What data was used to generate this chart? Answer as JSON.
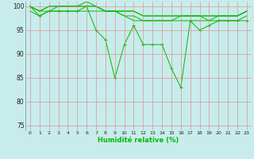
{
  "xlabel": "Humidité relative (%)",
  "xlim": [
    -0.5,
    23.5
  ],
  "ylim": [
    74,
    101
  ],
  "yticks": [
    75,
    80,
    85,
    90,
    95,
    100
  ],
  "xticks": [
    0,
    1,
    2,
    3,
    4,
    5,
    6,
    7,
    8,
    9,
    10,
    11,
    12,
    13,
    14,
    15,
    16,
    17,
    18,
    19,
    20,
    21,
    22,
    23
  ],
  "background_color": "#c8ecec",
  "grid_color": "#e08080",
  "line_color": "#00bb00",
  "series": [
    [
      100,
      99,
      99,
      100,
      100,
      100,
      100,
      100,
      99,
      99,
      98,
      98,
      97,
      97,
      97,
      97,
      98,
      98,
      98,
      97,
      98,
      98,
      98,
      99
    ],
    [
      100,
      99,
      100,
      100,
      100,
      100,
      101,
      100,
      99,
      99,
      99,
      99,
      98,
      98,
      98,
      98,
      98,
      98,
      98,
      98,
      98,
      98,
      98,
      99
    ],
    [
      100,
      99,
      100,
      100,
      100,
      100,
      100,
      100,
      99,
      99,
      98,
      97,
      97,
      97,
      97,
      97,
      97,
      97,
      97,
      97,
      97,
      97,
      97,
      98
    ],
    [
      100,
      98,
      99,
      99,
      99,
      99,
      100,
      95,
      93,
      85,
      92,
      96,
      92,
      92,
      92,
      87,
      83,
      97,
      95,
      96,
      97,
      97,
      97,
      97
    ],
    [
      99,
      98,
      99,
      99,
      99,
      99,
      99,
      99,
      99,
      99,
      99,
      99,
      98,
      98,
      98,
      98,
      98,
      98,
      98,
      98,
      98,
      98,
      98,
      99
    ]
  ],
  "marker_series": [
    3
  ],
  "xlabel_fontsize": 6,
  "tick_fontsize": 4.5,
  "ytick_fontsize": 5.5,
  "linewidth": 0.7,
  "markersize": 2.5
}
